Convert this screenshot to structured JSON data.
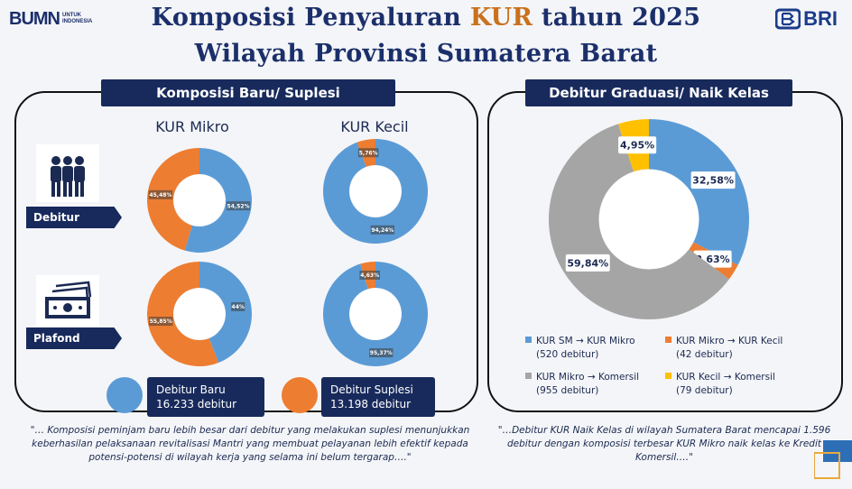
{
  "header": {
    "title_line1_pre": "Komposisi Penyaluran ",
    "title_line1_highlight": "KUR",
    "title_line1_post": " tahun 2025",
    "title_line2": "Wilayah Provinsi Sumatera Barat",
    "logo_left_main": "BUMN",
    "logo_left_sub1": "UNTUK",
    "logo_left_sub2": "INDONESIA",
    "logo_right": "BRI"
  },
  "left_section": {
    "heading": "Komposisi Baru/ Suplesi",
    "col1": "KUR Mikro",
    "col2": "KUR Kecil",
    "row1": "Debitur",
    "row2": "Plafond",
    "legend_baru_line1": "Debitur Baru",
    "legend_baru_line2": "16.233 debitur",
    "legend_suplesi_line1": "Debitur Suplesi",
    "legend_suplesi_line2": "13.198 debitur",
    "quote": "\"… Komposisi peminjam baru lebih besar dari debitur yang melakukan suplesi menunjukkan keberhasilan pelaksanaan revitalisasi Mantri yang membuat pelayanan lebih efektif kepada potensi-potensi di wilayah kerja yang selama ini belum tergarap….\""
  },
  "right_section": {
    "heading": "Debitur Graduasi/ Naik Kelas",
    "legend": [
      {
        "line1": "KUR SM → KUR Mikro",
        "line2": "(520 debitur)"
      },
      {
        "line1": "KUR Mikro → KUR Kecil",
        "line2": "(42 debitur)"
      },
      {
        "line1": "KUR Mikro → Komersil",
        "line2": "(955 debitur)"
      },
      {
        "line1": "KUR Kecil → Komersil",
        "line2": "(79 debitur)"
      }
    ],
    "quote": "\"…Debitur KUR Naik Kelas di wilayah Sumatera Barat mencapai 1.596 debitur dengan komposisi terbesar KUR Mikro naik kelas ke Kredit Komersil….\""
  },
  "colors": {
    "blue": "#5b9bd5",
    "orange": "#ed7d31",
    "gray": "#a5a5a5",
    "yellow": "#ffc000",
    "navy": "#182a5c"
  },
  "chart_data": [
    {
      "type": "pie",
      "title": "KUR Mikro - Debitur",
      "labels": [
        "Debitur Baru",
        "Debitur Suplesi"
      ],
      "values": [
        54.52,
        45.48
      ],
      "value_labels": [
        "54,52%",
        "45,48%"
      ]
    },
    {
      "type": "pie",
      "title": "KUR Kecil - Debitur",
      "labels": [
        "Debitur Baru",
        "Debitur Suplesi"
      ],
      "values": [
        94.24,
        5.76
      ],
      "value_labels": [
        "94,24%",
        "5,76%"
      ]
    },
    {
      "type": "pie",
      "title": "KUR Mikro - Plafond",
      "labels": [
        "Debitur Baru",
        "Debitur Suplesi"
      ],
      "values": [
        44,
        55.85
      ],
      "value_labels": [
        "44%",
        "55,85%"
      ]
    },
    {
      "type": "pie",
      "title": "KUR Kecil - Plafond",
      "labels": [
        "Debitur Baru",
        "Debitur Suplesi"
      ],
      "values": [
        95.37,
        4.63
      ],
      "value_labels": [
        "95,37%",
        "4,63%"
      ]
    },
    {
      "type": "pie",
      "title": "Debitur Graduasi/ Naik Kelas",
      "labels": [
        "KUR SM → KUR Mikro",
        "KUR Mikro → KUR Kecil",
        "KUR Mikro → Komersil",
        "KUR Kecil → Komersil"
      ],
      "values": [
        32.58,
        2.63,
        59.84,
        4.95
      ],
      "value_labels": [
        "32,58%",
        "2,63%",
        "59,84%",
        "4,95%"
      ]
    }
  ]
}
